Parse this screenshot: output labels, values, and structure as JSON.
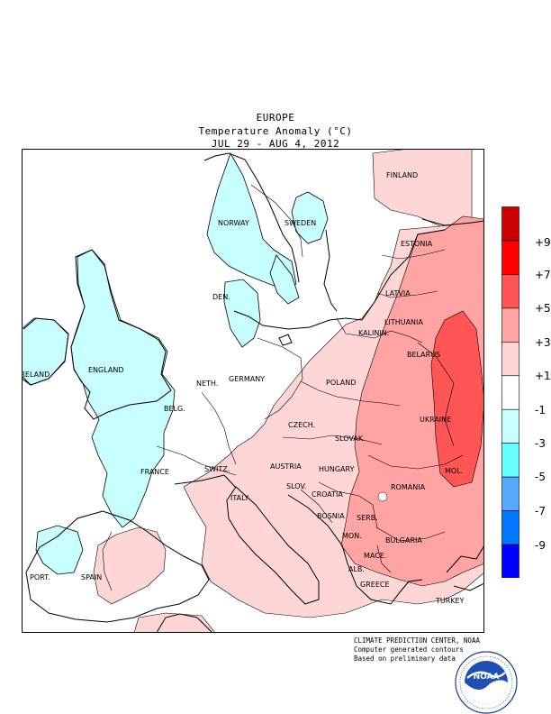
{
  "header": {
    "region": "EUROPE",
    "quantity": "Temperature Anomaly (°C)",
    "period": "JUL 29 - AUG  4, 2012"
  },
  "legend": {
    "labels": [
      "+9",
      "+7",
      "+5",
      "+3",
      "+1",
      "-1",
      "-3",
      "-5",
      "-7",
      "-9"
    ],
    "colors": [
      "#cc0000",
      "#ff0000",
      "#ff5555",
      "#ffa3a3",
      "#ffd6d6",
      "#ffffff",
      "#c8ffff",
      "#66ffff",
      "#55aaff",
      "#0077ff",
      "#0000ff"
    ]
  },
  "map": {
    "countries": [
      "FINLAND",
      "NORWAY",
      "SWEDEN",
      "ESTONIA",
      "LATVIA",
      "DEN.",
      "LITHUANIA",
      "KALININ.",
      "BELARUS",
      "IRELAND",
      "ENGLAND",
      "NETH.",
      "GERMANY",
      "POLAND",
      "BELG.",
      "UKRAINE",
      "CZECH.",
      "SLOVAK.",
      "FRANCE",
      "SWITZ.",
      "AUSTRIA",
      "HUNGARY",
      "MOL.",
      "ROMANIA",
      "SLOV.",
      "CROATIA",
      "ITALY",
      "BOSNIA",
      "SERB.",
      "MON.",
      "BULGARIA",
      "MACE.",
      "PORT.",
      "SPAIN",
      "ALB.",
      "GREECE",
      "TURKEY"
    ]
  },
  "credits": {
    "line1": "CLIMATE PREDICTION CENTER, NOAA",
    "line2": "Computer generated contours",
    "line3": "Based on preliminary data"
  },
  "seal": {
    "text": "NOAA",
    "ring_text": "NATIONAL OCEANIC AND ATMOSPHERIC ADMINISTRATION · U.S. DEPARTMENT OF COMMERCE"
  }
}
